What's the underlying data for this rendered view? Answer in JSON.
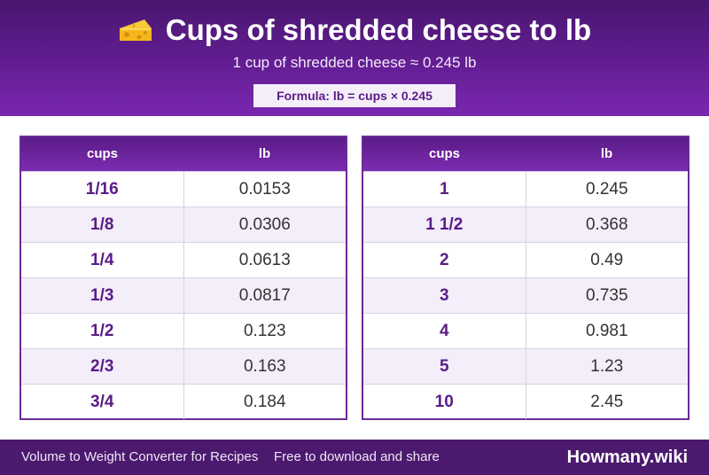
{
  "header": {
    "title": "Cups of shredded cheese to lb",
    "subtitle": "1 cup of shredded cheese ≈ 0.245 lb",
    "formula": "Formula: lb = cups × 0.245",
    "icon": "cheese-icon"
  },
  "tables": {
    "col_cups": "cups",
    "col_lb": "lb",
    "left": [
      {
        "cups": "1/16",
        "lb": "0.0153"
      },
      {
        "cups": "1/8",
        "lb": "0.0306"
      },
      {
        "cups": "1/4",
        "lb": "0.0613"
      },
      {
        "cups": "1/3",
        "lb": "0.0817"
      },
      {
        "cups": "1/2",
        "lb": "0.123"
      },
      {
        "cups": "2/3",
        "lb": "0.163"
      },
      {
        "cups": "3/4",
        "lb": "0.184"
      }
    ],
    "right": [
      {
        "cups": "1",
        "lb": "0.245"
      },
      {
        "cups": "1 1/2",
        "lb": "0.368"
      },
      {
        "cups": "2",
        "lb": "0.49"
      },
      {
        "cups": "3",
        "lb": "0.735"
      },
      {
        "cups": "4",
        "lb": "0.981"
      },
      {
        "cups": "5",
        "lb": "1.23"
      },
      {
        "cups": "10",
        "lb": "2.45"
      }
    ]
  },
  "footer": {
    "left": "Volume to Weight Converter for Recipes",
    "middle": "Free to download and share",
    "brand": "Howmany.wiki"
  },
  "colors": {
    "primary": "#5e1c8c",
    "footer": "#4b1a6e",
    "row_alt": "#f3eefa"
  }
}
